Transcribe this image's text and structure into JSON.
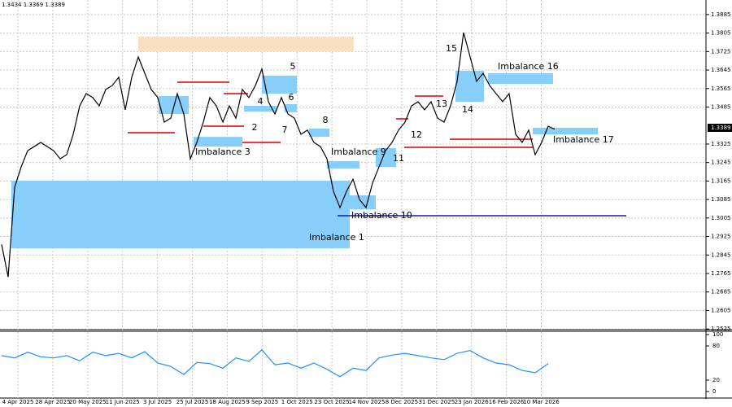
{
  "chart_data": {
    "type": "line",
    "header": "1.3434 1.3369 1.3389",
    "last_price": 1.3389,
    "color": "#000000",
    "grid": true,
    "ylim": [
      1.2522,
      1.3948
    ],
    "yticks": [
      1.3885,
      1.3805,
      1.3725,
      1.3645,
      1.3565,
      1.3485,
      1.3325,
      1.3245,
      1.3165,
      1.3085,
      1.3005,
      1.2925,
      1.2845,
      1.2765,
      1.2685,
      1.2605,
      1.2525
    ],
    "xtick_labels": [
      "4 Apr 2025",
      "28 Apr 2025",
      "20 May 2025",
      "11 Jun 2025",
      "3 Jul 2025",
      "25 Jul 2025",
      "18 Aug 2025",
      "9 Sep 2025",
      "1 Oct 2025",
      "23 Oct 2025",
      "14 Nov 2025",
      "8 Dec 2025",
      "31 Dec 2025",
      "23 Jan 2026",
      "16 Feb 2026",
      "10 Mar 2026"
    ],
    "values": [
      1.2891,
      1.275,
      1.3138,
      1.3226,
      1.3296,
      1.3314,
      1.3332,
      1.3314,
      1.3296,
      1.3261,
      1.3279,
      1.3367,
      1.349,
      1.3543,
      1.3526,
      1.349,
      1.3561,
      1.3578,
      1.3614,
      1.3473,
      1.3614,
      1.3702,
      1.3631,
      1.3561,
      1.3526,
      1.342,
      1.3437,
      1.3543,
      1.3455,
      1.3261,
      1.3332,
      1.342,
      1.3526,
      1.349,
      1.342,
      1.349,
      1.3437,
      1.3561,
      1.3526,
      1.3578,
      1.3649,
      1.3508,
      1.3455,
      1.3526,
      1.3455,
      1.3437,
      1.3367,
      1.3385,
      1.3332,
      1.3314,
      1.3261,
      1.312,
      1.305,
      1.312,
      1.3173,
      1.3085,
      1.305,
      1.3156,
      1.3226,
      1.3296,
      1.3332,
      1.3385,
      1.342,
      1.349,
      1.3508,
      1.3473,
      1.3508,
      1.3437,
      1.342,
      1.349,
      1.3596,
      1.3807,
      1.3702,
      1.3596,
      1.3631,
      1.3578,
      1.3543,
      1.3508,
      1.3543,
      1.3367,
      1.3332,
      1.3385,
      1.3279,
      1.3332,
      1.3402,
      1.3389
    ],
    "zones": [
      {
        "label": "Imbalance 1",
        "top": 1.3166,
        "bottom": 1.2874,
        "color": "#87cefa"
      },
      {
        "label": "Imbalance 3",
        "top": 1.3356,
        "bottom": 1.3314,
        "color": "#87cefa"
      },
      {
        "label": "Imbalance 9",
        "top": 1.3251,
        "bottom": 1.3219,
        "color": "#87cefa"
      },
      {
        "label": "Imbalance 10",
        "top": 1.3103,
        "bottom": 1.3043,
        "level": 1.3015,
        "color": "#87cefa"
      },
      {
        "label": "Imbalance 16",
        "top": 1.3631,
        "bottom": 1.3585,
        "color": "#87cefa"
      },
      {
        "label": "Imbalance 17",
        "top": 1.3395,
        "bottom": 1.3367,
        "color": "#87cefa"
      },
      {
        "top": 1.379,
        "bottom": 1.3726,
        "color": "#f9dfc3"
      }
    ],
    "markers": [
      {
        "label": "2",
        "price": 1.3395
      },
      {
        "label": "4",
        "price": 1.3508
      },
      {
        "label": "5",
        "price": 1.3659
      },
      {
        "label": "6",
        "price": 1.3526
      },
      {
        "label": "7",
        "price": 1.3385
      },
      {
        "label": "8",
        "price": 1.3427
      },
      {
        "label": "11",
        "price": 1.3261
      },
      {
        "label": "12",
        "price": 1.3363
      },
      {
        "label": "13",
        "price": 1.3497
      },
      {
        "label": "14",
        "price": 1.3473
      },
      {
        "label": "15",
        "price": 1.3737
      }
    ],
    "indicator": {
      "color": "#1e90ff",
      "ylim": [
        0,
        100
      ],
      "yticks": [
        100,
        80,
        20,
        0
      ],
      "values": [
        63,
        59,
        69,
        61,
        59,
        63,
        54,
        69,
        63,
        67,
        59,
        70,
        50,
        44,
        30,
        51,
        49,
        41,
        59,
        53,
        73,
        47,
        50,
        41,
        50,
        39,
        26,
        41,
        37,
        59,
        64,
        67,
        63,
        59,
        56,
        67,
        72,
        59,
        50,
        47,
        37,
        33,
        49
      ]
    }
  }
}
